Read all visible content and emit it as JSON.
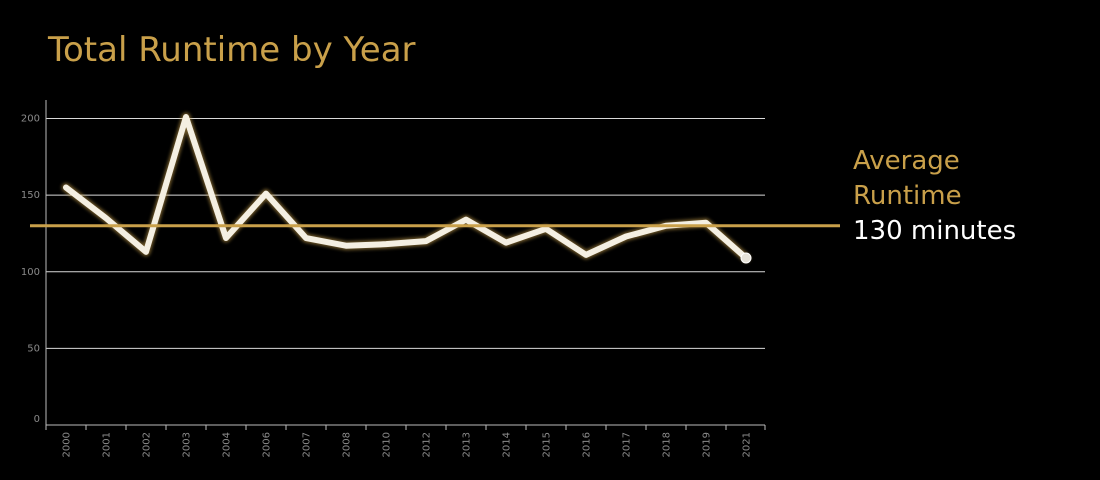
{
  "title": "Total Runtime by Year",
  "average": {
    "label": "Average Runtime",
    "value_text": "130 minutes",
    "value": 130
  },
  "colors": {
    "background": "#000000",
    "title": "#c9a04a",
    "average_line": "#c9a04a",
    "series_line": "#f4efe2",
    "series_glow": "#c9a04a",
    "gridline": "#ffffff",
    "tick_text": "#8a8a8a"
  },
  "chart_data": {
    "type": "line",
    "title": "Total Runtime by Year",
    "xlabel": "",
    "ylabel": "",
    "ylim": [
      0,
      210
    ],
    "yticks": [
      0,
      50,
      100,
      150,
      200
    ],
    "grid": true,
    "categories": [
      "2000",
      "2001",
      "2002",
      "2003",
      "2004",
      "2006",
      "2007",
      "2008",
      "2010",
      "2012",
      "2013",
      "2014",
      "2015",
      "2016",
      "2017",
      "2018",
      "2019",
      "2021"
    ],
    "series": [
      {
        "values": [
          155,
          135,
          113,
          201,
          122,
          151,
          122,
          117,
          118,
          120,
          134,
          119,
          128,
          111,
          123,
          130,
          132,
          109
        ]
      }
    ],
    "reference_line": {
      "value": 130
    }
  }
}
